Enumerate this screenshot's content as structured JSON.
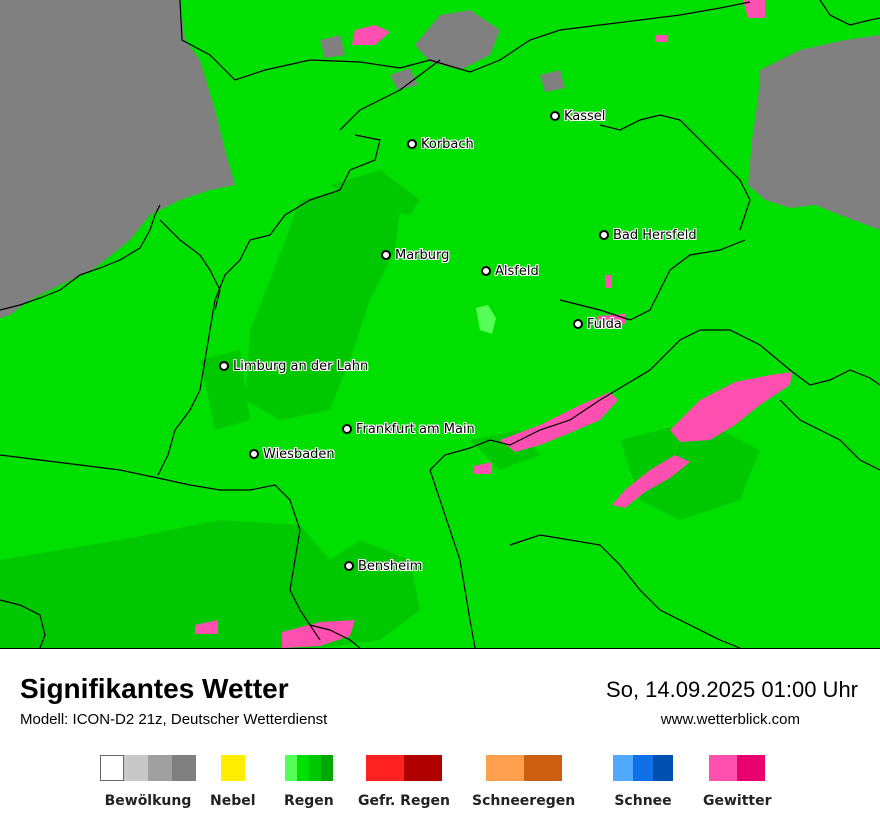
{
  "map": {
    "cities": [
      {
        "id": "kassel",
        "name": "Kassel"
      },
      {
        "id": "korbach",
        "name": "Korbach"
      },
      {
        "id": "bad-hersfeld",
        "name": "Bad Hersfeld"
      },
      {
        "id": "marburg",
        "name": "Marburg"
      },
      {
        "id": "alsfeld",
        "name": "Alsfeld"
      },
      {
        "id": "fulda",
        "name": "Fulda"
      },
      {
        "id": "limburg",
        "name": "Limburg an der Lahn"
      },
      {
        "id": "frankfurt",
        "name": "Frankfurt am Main"
      },
      {
        "id": "wiesbaden",
        "name": "Wiesbaden"
      },
      {
        "id": "bensheim",
        "name": "Bensheim"
      }
    ],
    "colors": {
      "rain_light": "#00e000",
      "rain_mid": "#00c800",
      "cloud_gray": "#808080",
      "thunder": "#ff4fb0"
    }
  },
  "footer": {
    "title": "Signifikantes Wetter",
    "subtitle": "Modell: ICON-D2 21z, Deutscher Wetterdienst",
    "datetime": "So, 14.09.2025 01:00 Uhr",
    "website": "www.wetterblick.com"
  },
  "legend": [
    {
      "label": "Bewölkung",
      "colors": [
        "#ffffff",
        "#c8c8c8",
        "#a0a0a0",
        "#808080"
      ]
    },
    {
      "label": "Nebel",
      "colors": [
        "#ffee00"
      ]
    },
    {
      "label": "Regen",
      "colors": [
        "#55ff55",
        "#00e000",
        "#00c800",
        "#00a800"
      ]
    },
    {
      "label": "Gefr. Regen",
      "colors": [
        "#ff2020",
        "#b00000"
      ]
    },
    {
      "label": "Schneeregen",
      "colors": [
        "#ffa050",
        "#cc6010"
      ]
    },
    {
      "label": "Schnee",
      "colors": [
        "#50a8ff",
        "#1070e8",
        "#0050b0"
      ]
    },
    {
      "label": "Gewitter",
      "colors": [
        "#ff50b0",
        "#e8006e"
      ]
    }
  ]
}
